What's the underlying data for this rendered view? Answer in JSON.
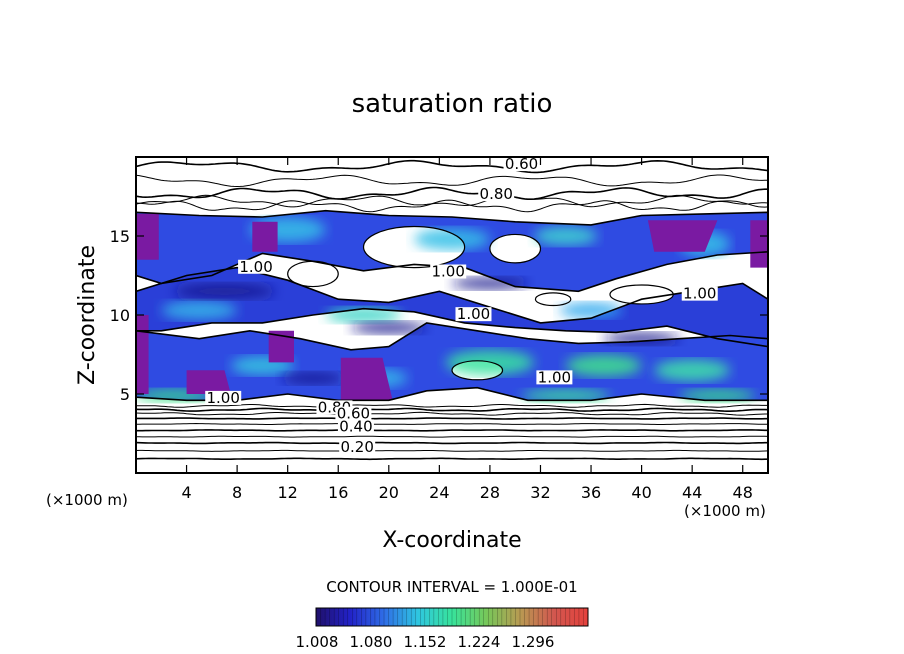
{
  "chart_data": {
    "type": "heatmap",
    "title": "saturation ratio",
    "xlabel": "X-coordinate",
    "ylabel": "Z-coordinate",
    "x_unit": "(×1000 m)",
    "y_unit": "(×1000 m)",
    "xlim": [
      0,
      50
    ],
    "ylim": [
      0,
      20
    ],
    "xticks": [
      4,
      8,
      12,
      16,
      20,
      24,
      28,
      32,
      36,
      40,
      44,
      48
    ],
    "yticks": [
      5,
      10,
      15
    ],
    "contour_interval_label": "CONTOUR INTERVAL = 1.000E-01",
    "colorbar": {
      "ticks": [
        "1.008",
        "1.080",
        "1.152",
        "1.224",
        "1.296"
      ],
      "colors": [
        "#20106a",
        "#2222c8",
        "#2f6de6",
        "#2fc6e0",
        "#38e39b",
        "#76c85a",
        "#b89a52",
        "#d2574f",
        "#e4413c"
      ]
    },
    "contour_labels": [
      {
        "text": "0.60",
        "x": 30.5,
        "y": 19.3
      },
      {
        "text": "0.80",
        "x": 28.5,
        "y": 17.4
      },
      {
        "text": "1.00",
        "x": 9.5,
        "y": 12.8
      },
      {
        "text": "1.00",
        "x": 24.7,
        "y": 12.5
      },
      {
        "text": "1.00",
        "x": 26.7,
        "y": 9.8
      },
      {
        "text": "1.00",
        "x": 33.1,
        "y": 5.8
      },
      {
        "text": "1.00",
        "x": 44.6,
        "y": 11.1
      },
      {
        "text": "1.00",
        "x": 6.9,
        "y": 4.5
      },
      {
        "text": "0.80",
        "x": 15.7,
        "y": 3.9
      },
      {
        "text": "0.60",
        "x": 17.2,
        "y": 3.5
      },
      {
        "text": "0.40",
        "x": 17.4,
        "y": 2.7
      },
      {
        "text": "0.20",
        "x": 17.5,
        "y": 1.4
      }
    ]
  }
}
